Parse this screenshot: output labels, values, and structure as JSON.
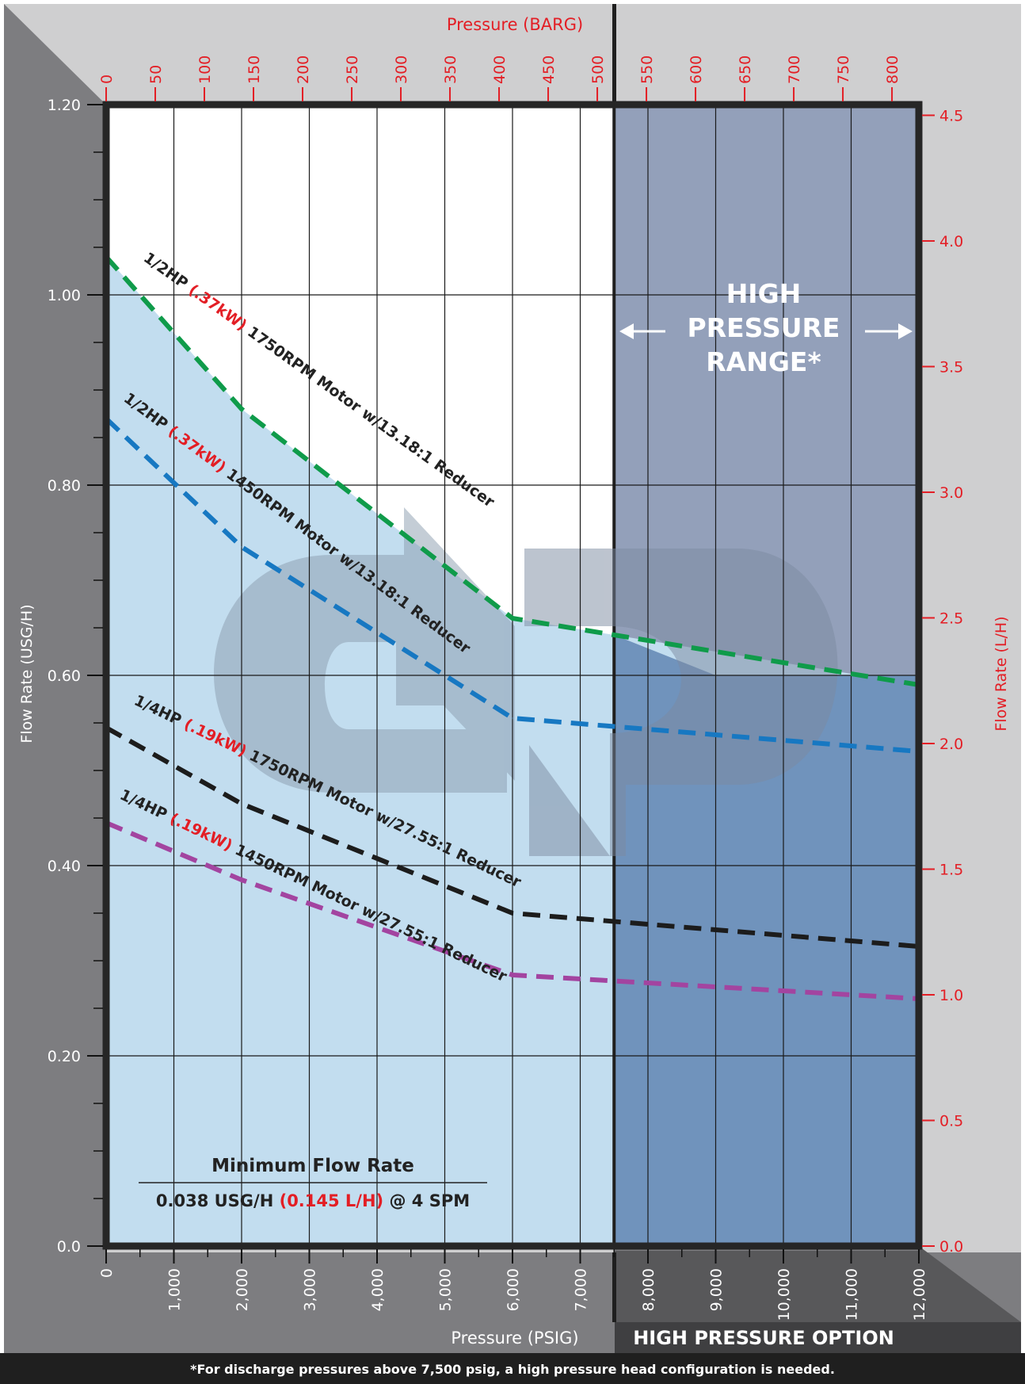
{
  "chart_data": {
    "type": "line",
    "title": "",
    "x_bottom": {
      "label": "Pressure (PSIG)",
      "min": 0,
      "max": 12000,
      "ticks": [
        0,
        1000,
        2000,
        3000,
        4000,
        5000,
        6000,
        7000,
        8000,
        9000,
        10000,
        11000,
        12000
      ],
      "tick_labels": [
        "0",
        "1,000",
        "2,000",
        "3,000",
        "4,000",
        "5,000",
        "6,000",
        "7,000",
        "8,000",
        "9,000",
        "10,000",
        "11,000",
        "12,000"
      ]
    },
    "x_top": {
      "label": "Pressure (BARG)",
      "ticks": [
        0,
        50,
        100,
        150,
        200,
        250,
        300,
        350,
        400,
        450,
        500,
        550,
        600,
        650,
        700,
        750,
        800
      ],
      "tick_labels": [
        "0",
        "50",
        "100",
        "150",
        "200",
        "250",
        "300",
        "350",
        "400",
        "450",
        "500",
        "550",
        "600",
        "650",
        "700",
        "750",
        "800"
      ]
    },
    "y_left": {
      "label": "Flow Rate (USG/H)",
      "min": 0,
      "max": 1.2,
      "ticks": [
        0,
        0.2,
        0.4,
        0.6,
        0.8,
        1.0,
        1.2
      ],
      "tick_labels": [
        "0.0",
        "0.20",
        "0.40",
        "0.60",
        "0.80",
        "1.00",
        "1.20"
      ]
    },
    "y_right": {
      "label": "Flow Rate (L/H)",
      "ticks": [
        0,
        0.5,
        1.0,
        1.5,
        2.0,
        2.5,
        3.0,
        3.5,
        4.0,
        4.5
      ],
      "tick_labels": [
        "0.0",
        "0.5",
        "1.0",
        "1.5",
        "2.0",
        "2.5",
        "3.0",
        "3.5",
        "4.0",
        "4.5"
      ]
    },
    "series": [
      {
        "hp": "1/2HP",
        "kw": "(.37kW)",
        "desc": "1750RPM Motor w/13.18:1 Reducer",
        "color": "#0f9b4a",
        "x": [
          0,
          2000,
          6000,
          12000
        ],
        "y": [
          1.04,
          0.88,
          0.66,
          0.59
        ]
      },
      {
        "hp": "1/2HP",
        "kw": "(.37kW)",
        "desc": "1450RPM Motor w/13.18:1 Reducer",
        "color": "#1778c2",
        "x": [
          0,
          2000,
          6000,
          12000
        ],
        "y": [
          0.87,
          0.735,
          0.555,
          0.52
        ]
      },
      {
        "hp": "1/4HP",
        "kw": "(.19kW)",
        "desc": "1750RPM Motor w/27.55:1 Reducer",
        "color": "#1c1c1c",
        "x": [
          0,
          2000,
          6000,
          12000
        ],
        "y": [
          0.545,
          0.465,
          0.35,
          0.315
        ]
      },
      {
        "hp": "1/4HP",
        "kw": "(.19kW)",
        "desc": "1450RPM Motor w/27.55:1 Reducer",
        "color": "#a344a0",
        "x": [
          0,
          2000,
          6000,
          12000
        ],
        "y": [
          0.445,
          0.385,
          0.285,
          0.26
        ]
      }
    ],
    "high_pressure_threshold": 7500,
    "annotations": {
      "high_pressure_range": [
        "HIGH",
        "PRESSURE",
        "RANGE*"
      ],
      "high_pressure_option": "HIGH PRESSURE OPTION",
      "min_flow_title": "Minimum Flow Rate",
      "min_flow_usg": "0.038 USG/H",
      "min_flow_lh": "(0.145 L/H)",
      "min_flow_spm": "@ 4 SPM",
      "footnote": "*For discharge pressures above 7,500 psig, a high pressure head configuration is needed."
    },
    "colors": {
      "accent_red": "#e31e25",
      "low_region": "#c2ddef",
      "high_region": "#7093bc",
      "high_band": "#93a0ba",
      "frame": "#262626"
    }
  }
}
